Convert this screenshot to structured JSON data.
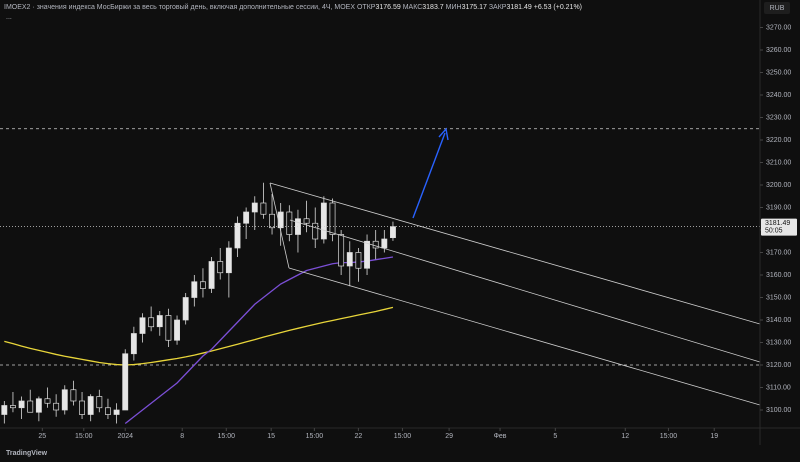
{
  "chart_data": {
    "type": "candlestick",
    "header": {
      "symbol": "IMOEX2",
      "separator": "·",
      "description": "значения индекса МосБиржи за весь торговый день, включая дополнительные сессии, 4Ч, MOEX",
      "open_label": "ОТКР",
      "high_label": "МАКС",
      "low_label": "МИН",
      "close_label": "ЗАКР",
      "change_label": "+6.53 (+0.21%)",
      "more": "..."
    },
    "currency": "RUB",
    "countdown": "50:05",
    "logo": "TradingView",
    "open": [
      3098,
      3102,
      3101,
      3104,
      3099,
      3105,
      3103,
      3100,
      3109,
      3104,
      3098,
      3106,
      3101,
      3098,
      3100,
      3125,
      3134,
      3141,
      3137,
      3142,
      3131,
      3140,
      3150,
      3157,
      3154,
      3166,
      3161,
      3172,
      3183,
      3188,
      3192,
      3187,
      3181,
      3188,
      3178,
      3185,
      3183,
      3176,
      3192,
      3178,
      3164,
      3170,
      3163,
      3175,
      3172,
      3176.59
    ],
    "high": [
      3104,
      3108,
      3106,
      3109,
      3106,
      3110,
      3107,
      3111,
      3113,
      3108,
      3107,
      3109,
      3105,
      3103,
      3127,
      3137,
      3143,
      3146,
      3144,
      3145,
      3142,
      3152,
      3160,
      3163,
      3168,
      3172,
      3175,
      3186,
      3190,
      3195,
      3201,
      3196,
      3192,
      3191,
      3189,
      3193,
      3190,
      3195,
      3194,
      3180,
      3175,
      3172,
      3178,
      3180,
      3180,
      3183.7
    ],
    "low": [
      3094,
      3099,
      3096,
      3100,
      3095,
      3101,
      3097,
      3098,
      3102,
      3096,
      3095,
      3099,
      3096,
      3094,
      3100,
      3122,
      3130,
      3135,
      3133,
      3128,
      3129,
      3138,
      3146,
      3150,
      3152,
      3158,
      3150,
      3168,
      3176,
      3180,
      3185,
      3178,
      3173,
      3175,
      3170,
      3179,
      3172,
      3174,
      3175,
      3160,
      3155,
      3157,
      3160,
      3167,
      3170,
      3175.17
    ],
    "close": [
      3102,
      3101,
      3104,
      3099,
      3105,
      3103,
      3100,
      3109,
      3104,
      3098,
      3106,
      3101,
      3098,
      3100,
      3125,
      3134,
      3141,
      3137,
      3142,
      3131,
      3140,
      3150,
      3157,
      3154,
      3166,
      3161,
      3172,
      3183,
      3188,
      3192,
      3187,
      3181,
      3188,
      3178,
      3185,
      3183,
      3176,
      3192,
      3178,
      3164,
      3170,
      3163,
      3175,
      3172,
      3176,
      3181.49
    ],
    "ma_slow": {
      "color": "#e8d53a",
      "values": [
        3130.5,
        3129.5,
        3128.4,
        3127.4,
        3126.5,
        3125.6,
        3124.7,
        3123.9,
        3123.2,
        3122.5,
        3121.8,
        3121.1,
        3120.6,
        3120.2,
        3120.0,
        3120.2,
        3120.6,
        3121.1,
        3121.7,
        3122.3,
        3122.9,
        3123.6,
        3124.4,
        3125.3,
        3126.2,
        3127.2,
        3128.2,
        3129.2,
        3130.3,
        3131.3,
        3132.4,
        3133.4,
        3134.4,
        3135.4,
        3136.3,
        3137.2,
        3138.1,
        3139.0,
        3139.8,
        3140.6,
        3141.4,
        3142.2,
        3143.0,
        3143.8,
        3144.7,
        3145.6
      ]
    },
    "ma_fast": {
      "color": "#7b4fd6",
      "values": [
        null,
        null,
        null,
        null,
        null,
        null,
        null,
        null,
        null,
        null,
        null,
        null,
        null,
        null,
        3094,
        3097,
        3100,
        3103,
        3106,
        3109,
        3112,
        3116,
        3120,
        3124,
        3127,
        3131,
        3135,
        3139,
        3143,
        3147,
        3150,
        3153,
        3156,
        3158,
        3160,
        3162,
        3163,
        3164,
        3165,
        3165.5,
        3165.5,
        3165.8,
        3166.2,
        3166.8,
        3167.4,
        3168
      ]
    },
    "levels": [
      3225,
      3120
    ],
    "up_color": "#e6e6e6",
    "down_color": "#111111",
    "xlim": [
      -0.5,
      87.5
    ],
    "xticks": [
      {
        "value": 4.4,
        "label": "25"
      },
      {
        "value": 9.2,
        "label": "15:00"
      },
      {
        "value": 14,
        "label": "2024"
      },
      {
        "value": 20.6,
        "label": "8"
      },
      {
        "value": 25.7,
        "label": "15:00"
      },
      {
        "value": 30.9,
        "label": "15"
      },
      {
        "value": 35.9,
        "label": "15:00"
      },
      {
        "value": 41,
        "label": "22"
      },
      {
        "value": 46.1,
        "label": "15:00"
      },
      {
        "value": 51.5,
        "label": "29"
      },
      {
        "value": 57.4,
        "label": "Фев"
      },
      {
        "value": 63.8,
        "label": "5"
      },
      {
        "value": 71.9,
        "label": "12"
      },
      {
        "value": 76.9,
        "label": "15:00"
      },
      {
        "value": 82.2,
        "label": "19"
      }
    ],
    "ylim": [
      3092,
      3280
    ],
    "yticks": [
      {
        "value": 3100,
        "label": "3100.00"
      },
      {
        "value": 3110,
        "label": "3110.00"
      },
      {
        "value": 3120,
        "label": "3120.00"
      },
      {
        "value": 3130,
        "label": "3130.00"
      },
      {
        "value": 3140,
        "label": "3140.00"
      },
      {
        "value": 3150,
        "label": "3150.00"
      },
      {
        "value": 3160,
        "label": "3160.00"
      },
      {
        "value": 3170,
        "label": "3170.00"
      },
      {
        "value": 3180,
        "label": "3180.00"
      },
      {
        "value": 3190,
        "label": "3190.00"
      },
      {
        "value": 3200,
        "label": "3200.00"
      },
      {
        "value": 3210,
        "label": "3210.00"
      },
      {
        "value": 3220,
        "label": "3220.00"
      },
      {
        "value": 3230,
        "label": "3230.00"
      },
      {
        "value": 3240,
        "label": "3240.00"
      },
      {
        "value": 3250,
        "label": "3250.00"
      },
      {
        "value": 3260,
        "label": "3260.00"
      },
      {
        "value": 3270,
        "label": "3270.00"
      }
    ]
  }
}
